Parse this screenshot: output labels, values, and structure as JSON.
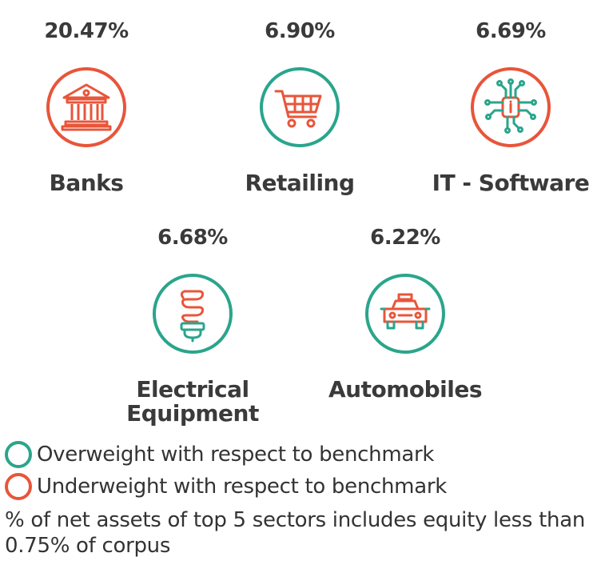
{
  "colors": {
    "overweight": "#2aa58c",
    "underweight": "#e8553a"
  },
  "sectors": [
    {
      "percent": "20.47%",
      "name": "Banks",
      "weight": "underweight",
      "icon": "bank-icon"
    },
    {
      "percent": "6.90%",
      "name": "Retailing",
      "weight": "overweight",
      "icon": "shopping-cart-icon"
    },
    {
      "percent": "6.69%",
      "name": "IT - Software",
      "weight": "underweight",
      "icon": "circuit-chip-icon"
    },
    {
      "percent": "6.68%",
      "name": "Electrical\nEquipment",
      "weight": "overweight",
      "icon": "light-bulb-icon"
    },
    {
      "percent": "6.22%",
      "name": "Automobiles",
      "weight": "overweight",
      "icon": "car-icon"
    }
  ],
  "legend": {
    "overweight": "Overweight with respect to benchmark",
    "underweight": "Underweight with respect to benchmark"
  },
  "footnote": "% of net assets of top 5 sectors includes equity less than 0.75% of corpus"
}
